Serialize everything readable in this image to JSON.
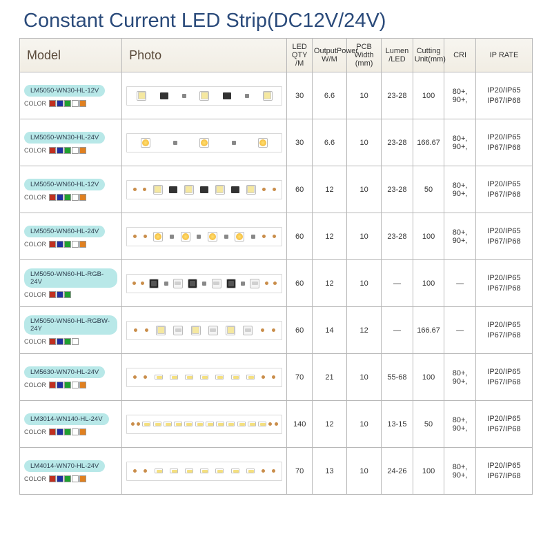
{
  "title": "Constant Current LED Strip(DC12V/24V)",
  "columns": {
    "model": "Model",
    "photo": "Photo",
    "led_qty": "LED QTY /M",
    "power": "OutputPower W/M",
    "pcb": "PCB Width (mm)",
    "lumen": "Lumen /LED",
    "cut": "Cutting Unit(mm)",
    "cri": "CRI",
    "ip": "IP RATE"
  },
  "color_label": "COLOR",
  "ip_text": "IP20/IP65 IP67/IP68",
  "cri_text": "80+, 90+,",
  "dash": "—",
  "swatch_sets": {
    "std": [
      "#c03020",
      "#2030a0",
      "#20a030",
      "#ffffff",
      "#e08020"
    ],
    "rgb": [
      "#c03020",
      "#2030a0",
      "#20a030"
    ],
    "rgbw": [
      "#c03020",
      "#2030a0",
      "#20a030",
      "#ffffff"
    ]
  },
  "col_widths": {
    "model": 130,
    "photo": 210,
    "led": 32,
    "pow": 44,
    "pcb": 44,
    "lum": 40,
    "cut": 40,
    "cri": 40,
    "ip": 72
  },
  "rows": [
    {
      "model": "LM5050-WN30-HL-12V",
      "sw": "std",
      "strip": "white3",
      "led": "30",
      "pow": "6.6",
      "pcb": "10",
      "lum": "23-28",
      "cut": "100",
      "cri": "cri"
    },
    {
      "model": "LM5050-WN30-HL-24V",
      "sw": "std",
      "strip": "yellow3",
      "led": "30",
      "pow": "6.6",
      "pcb": "10",
      "lum": "23-28",
      "cut": "166.67",
      "cri": "cri"
    },
    {
      "model": "LM5050-WN60-HL-12V",
      "sw": "std",
      "strip": "white6",
      "led": "60",
      "pow": "12",
      "pcb": "10",
      "lum": "23-28",
      "cut": "50",
      "cri": "cri"
    },
    {
      "model": "LM5050-WN60-HL-24V",
      "sw": "std",
      "strip": "yellow6",
      "led": "60",
      "pow": "12",
      "pcb": "10",
      "lum": "23-28",
      "cut": "100",
      "cri": "cri"
    },
    {
      "model": "LM5050-WN60-HL-RGB-24V",
      "sw": "rgb",
      "strip": "rgb6",
      "led": "60",
      "pow": "12",
      "pcb": "10",
      "lum": "dash",
      "cut": "100",
      "cri": "dash"
    },
    {
      "model": "LM5050-WN60-HL-RGBW-24Y",
      "sw": "rgbw",
      "strip": "mix6",
      "led": "60",
      "pow": "14",
      "pcb": "12",
      "lum": "dash",
      "cut": "166.67",
      "cri": "dash"
    },
    {
      "model": "LM5630-WN70-HL-24V",
      "sw": "std",
      "strip": "smd7",
      "led": "70",
      "pow": "21",
      "pcb": "10",
      "lum": "55-68",
      "cut": "100",
      "cri": "cri"
    },
    {
      "model": "LM3014-WN140-HL-24V",
      "sw": "std",
      "strip": "smd12",
      "led": "140",
      "pow": "12",
      "pcb": "10",
      "lum": "13-15",
      "cut": "50",
      "cri": "cri"
    },
    {
      "model": "LM4014-WN70-HL-24V",
      "sw": "std",
      "strip": "smd7",
      "led": "70",
      "pow": "13",
      "pcb": "10",
      "lum": "24-26",
      "cut": "100",
      "cri": "cri"
    }
  ]
}
